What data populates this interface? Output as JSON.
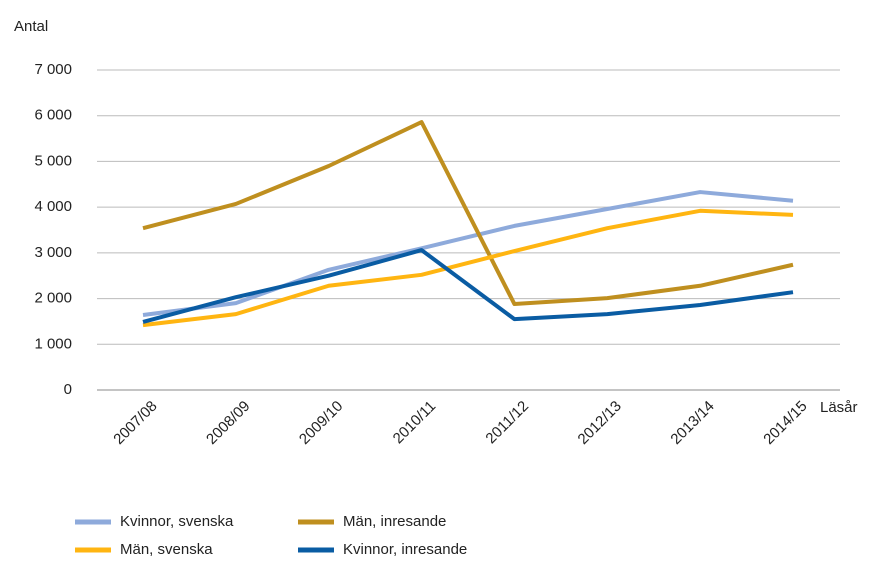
{
  "chart_data": {
    "type": "line",
    "y_axis_label": "Antal",
    "x_axis_label": "Läsår",
    "categories": [
      "2007/08",
      "2008/09",
      "2009/10",
      "2010/11",
      "2011/12",
      "2012/13",
      "2013/14",
      "2014/15"
    ],
    "series": [
      {
        "name": "Kvinnor, svenska",
        "color": "#8eaadb",
        "values": [
          1640,
          1900,
          2630,
          3100,
          3590,
          3960,
          4330,
          4140
        ]
      },
      {
        "name": "Män, inresande",
        "color": "#bf8f1f",
        "values": [
          3540,
          4070,
          4900,
          5860,
          1880,
          2010,
          2280,
          2740
        ]
      },
      {
        "name": "Män, svenska",
        "color": "#ffb511",
        "values": [
          1420,
          1660,
          2280,
          2520,
          3040,
          3540,
          3920,
          3830
        ]
      },
      {
        "name": "Kvinnor, inresande",
        "color": "#0a5ca3",
        "values": [
          1490,
          2030,
          2500,
          3060,
          1550,
          1660,
          1860,
          2140
        ]
      }
    ],
    "ylim": [
      0,
      7000
    ],
    "yticks": [
      0,
      {
        "value": 1000,
        "label": "1 000"
      },
      {
        "value": 2000,
        "label": "2 000"
      },
      {
        "value": 3000,
        "label": "3 000"
      },
      {
        "value": 4000,
        "label": "4 000"
      },
      {
        "value": 5000,
        "label": "5 000"
      },
      {
        "value": 6000,
        "label": "6 000"
      },
      {
        "value": 7000,
        "label": "7 000"
      }
    ],
    "grid": true,
    "legend": "bottom"
  }
}
